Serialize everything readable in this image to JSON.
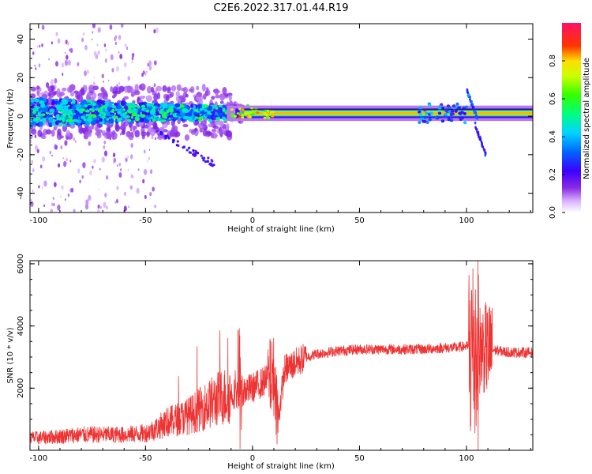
{
  "title": "C2E6.2022.317.01.44.R19",
  "colors": {
    "snr_line": "#ee3333",
    "axes": "#000000",
    "background": "#ffffff"
  },
  "chart_data": [
    {
      "type": "heatmap",
      "xlabel": "Height of straight line (km)",
      "ylabel": "Frequency (Hz)",
      "xlim": [
        -104,
        131
      ],
      "ylim": [
        -50,
        48
      ],
      "xticks": [
        -100,
        -50,
        0,
        50,
        100
      ],
      "yticks": [
        -40,
        -20,
        0,
        20,
        40
      ],
      "colorbar": {
        "label": "Normalized spectral amplitude",
        "range": [
          0,
          1
        ],
        "ticks": [
          0.0,
          0.2,
          0.4,
          0.6,
          0.8
        ],
        "colormap": "rainbow (white-purple-blue-cyan-green-yellow-red-magenta)"
      }
    },
    {
      "type": "line",
      "xlabel": "Height of straight line (km)",
      "ylabel": "SNR (10 * v/v)",
      "xlim": [
        -104,
        131
      ],
      "ylim": [
        0,
        6100
      ],
      "xticks": [
        -100,
        -50,
        0,
        50,
        100
      ],
      "yticks": [
        2000,
        4000,
        6000
      ],
      "series": [
        {
          "x": [
            -104,
            -100,
            -90,
            -80,
            -70,
            -60,
            -50,
            -45,
            -40,
            -35,
            -30,
            -25,
            -20,
            -15,
            -10,
            -5,
            0,
            5,
            10,
            12,
            15,
            20,
            25,
            30,
            40,
            50,
            60,
            70,
            80,
            90,
            95,
            100,
            102,
            104,
            106,
            108,
            110,
            115,
            120,
            125,
            131
          ],
          "values": [
            400,
            400,
            450,
            500,
            500,
            500,
            550,
            700,
            900,
            1000,
            1100,
            1300,
            1500,
            1700,
            1800,
            1900,
            2000,
            2200,
            2400,
            1000,
            2600,
            2800,
            3000,
            3100,
            3200,
            3250,
            3250,
            3250,
            3250,
            3300,
            3300,
            3350,
            3300,
            3200,
            3200,
            3300,
            3250,
            3200,
            3150,
            3150,
            3150
          ]
        }
      ]
    }
  ]
}
